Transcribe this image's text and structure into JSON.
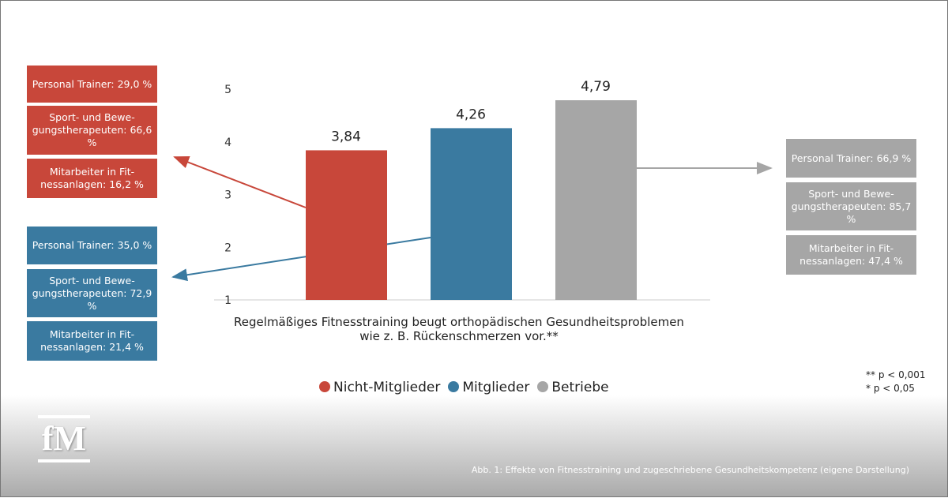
{
  "chart_data": {
    "type": "bar",
    "categories": [
      "Nicht-Mitglieder",
      "Mitglieder",
      "Betriebe"
    ],
    "values": [
      3.84,
      4.26,
      4.79
    ],
    "value_labels": [
      "3,84",
      "4,26",
      "4,79"
    ],
    "colors": [
      "#c8473a",
      "#3a7aa0",
      "#a6a6a6"
    ],
    "ylim": [
      1,
      5
    ],
    "yticks": [
      "1",
      "2",
      "3",
      "4",
      "5"
    ],
    "grid": false,
    "legend": "bottom",
    "xlabel_line1": "Regelmäßiges Fitnesstraining beugt orthopädischen Gesundheitsproblemen",
    "xlabel_line2": "wie z. B. Rückenschmerzen vor.**"
  },
  "boxes": {
    "red": [
      "Personal Trainer: 29,0 %",
      "Sport- und Bewe-gungstherapeuten: 66,6 %",
      "Mitarbeiter in Fit-nessanlagen: 16,2 %"
    ],
    "blue": [
      "Personal Trainer: 35,0 %",
      "Sport- und Bewe-gungstherapeuten: 72,9 %",
      "Mitarbeiter in Fit-nessanlagen: 21,4 %"
    ],
    "gray": [
      "Personal Trainer: 66,9 %",
      "Sport- und Bewe-gungstherapeuten: 85,7 %",
      "Mitarbeiter in Fit-nessanlagen: 47,4 %"
    ]
  },
  "notes": {
    "p1": "** p < 0,001",
    "p2": "* p < 0,05"
  },
  "logo": "fM",
  "caption": "Abb. 1: Effekte von Fitnesstraining und zugeschriebene Gesundheitskompetenz (eigene Darstellung)"
}
